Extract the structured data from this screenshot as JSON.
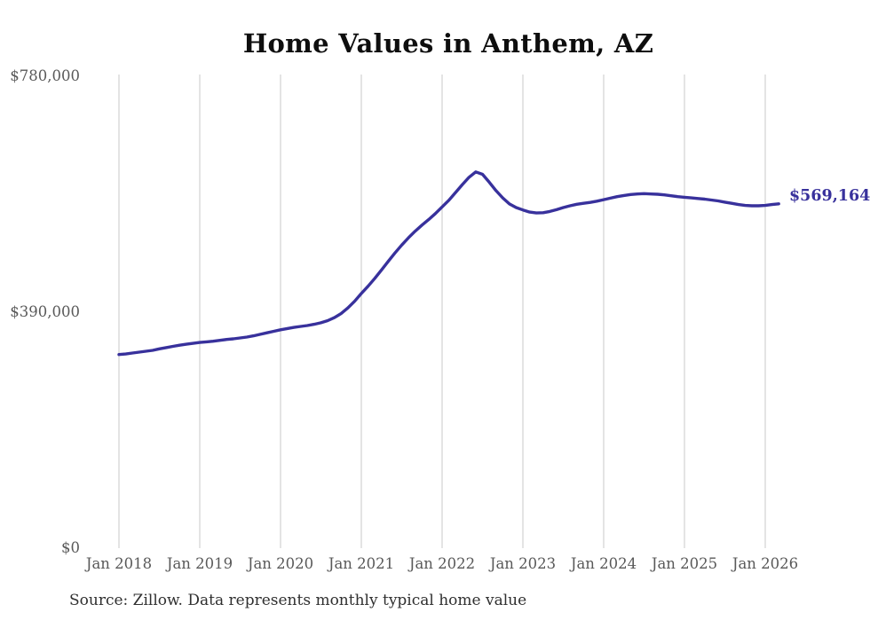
{
  "title": "Home Values in Anthem, AZ",
  "current_value_label": "$569,164",
  "source_note": "Source: Zillow. Data represents monthly typical home value",
  "colors": {
    "background": "#ffffff",
    "line": "#38319c",
    "end_label": "#38319c",
    "grid": "#c9c9c9",
    "axis_text": "#595959",
    "title_text": "#0e0e0e",
    "source_text": "#2f2f2f"
  },
  "y_axis": {
    "ticks": [
      {
        "label": "$780,000",
        "value": 780000
      },
      {
        "label": "$390,000",
        "value": 390000
      },
      {
        "label": "$0",
        "value": 0
      }
    ],
    "min": 0,
    "max": 780000
  },
  "x_axis": {
    "ticks": [
      "Jan 2018",
      "Jan 2019",
      "Jan 2020",
      "Jan 2021",
      "Jan 2022",
      "Jan 2023",
      "Jan 2024",
      "Jan 2025",
      "Jan 2026"
    ]
  },
  "chart_data": {
    "type": "line",
    "title": "Home Values in Anthem, AZ",
    "xlabel": "",
    "ylabel": "",
    "ylim": [
      0,
      780000
    ],
    "grid": "vertical-only",
    "legend": "none",
    "x_tick_labels": [
      "Jan 2018",
      "Jan 2019",
      "Jan 2020",
      "Jan 2021",
      "Jan 2022",
      "Jan 2023",
      "Jan 2024",
      "Jan 2025",
      "Jan 2026"
    ],
    "y_tick_labels": [
      "$780,000",
      "$390,000",
      "$0"
    ],
    "last_point_label": "$569,164",
    "last_point_value": 569164,
    "source": "Zillow",
    "series": [
      {
        "name": "Monthly typical home value",
        "months": [
          "Jan 2018",
          "Feb 2018",
          "Mar 2018",
          "Apr 2018",
          "May 2018",
          "Jun 2018",
          "Jul 2018",
          "Aug 2018",
          "Sep 2018",
          "Oct 2018",
          "Nov 2018",
          "Dec 2018",
          "Jan 2019",
          "Feb 2019",
          "Mar 2019",
          "Apr 2019",
          "May 2019",
          "Jun 2019",
          "Jul 2019",
          "Aug 2019",
          "Sep 2019",
          "Oct 2019",
          "Nov 2019",
          "Dec 2019",
          "Jan 2020",
          "Feb 2020",
          "Mar 2020",
          "Apr 2020",
          "May 2020",
          "Jun 2020",
          "Jul 2020",
          "Aug 2020",
          "Sep 2020",
          "Oct 2020",
          "Nov 2020",
          "Dec 2020",
          "Jan 2021",
          "Feb 2021",
          "Mar 2021",
          "Apr 2021",
          "May 2021",
          "Jun 2021",
          "Jul 2021",
          "Aug 2021",
          "Sep 2021",
          "Oct 2021",
          "Nov 2021",
          "Dec 2021",
          "Jan 2022",
          "Feb 2022",
          "Mar 2022",
          "Apr 2022",
          "May 2022",
          "Jun 2022",
          "Jul 2022",
          "Aug 2022",
          "Sep 2022",
          "Oct 2022",
          "Nov 2022",
          "Dec 2022",
          "Jan 2023",
          "Feb 2023",
          "Mar 2023",
          "Apr 2023",
          "May 2023",
          "Jun 2023",
          "Jul 2023",
          "Aug 2023",
          "Sep 2023",
          "Oct 2023",
          "Nov 2023",
          "Dec 2023",
          "Jan 2024",
          "Feb 2024",
          "Mar 2024",
          "Apr 2024",
          "May 2024",
          "Jun 2024",
          "Jul 2024",
          "Aug 2024",
          "Sep 2024",
          "Oct 2024",
          "Nov 2024",
          "Dec 2024",
          "Jan 2025",
          "Feb 2025",
          "Mar 2025",
          "Apr 2025",
          "May 2025",
          "Jun 2025",
          "Jul 2025",
          "Aug 2025",
          "Sep 2025",
          "Oct 2025",
          "Nov 2025",
          "Dec 2025",
          "Jan 2026",
          "Feb 2026",
          "Mar 2026"
        ],
        "values": [
          320000,
          321000,
          322500,
          324000,
          325500,
          327000,
          329500,
          331500,
          333500,
          335500,
          337000,
          338500,
          340000,
          341000,
          342000,
          343500,
          345000,
          346000,
          347500,
          349000,
          351000,
          353500,
          356000,
          358500,
          361000,
          363000,
          365000,
          366500,
          368000,
          370000,
          372500,
          376000,
          381000,
          388000,
          397000,
          408000,
          421000,
          433000,
          446000,
          460000,
          474000,
          488000,
          501000,
          513000,
          524000,
          534000,
          543000,
          553000,
          564000,
          575000,
          588000,
          601000,
          613000,
          622000,
          618000,
          605000,
          591000,
          579000,
          569000,
          563000,
          559000,
          555500,
          554000,
          554500,
          556500,
          559500,
          563000,
          566000,
          568500,
          570000,
          571500,
          573500,
          576000,
          578500,
          581000,
          583000,
          584500,
          585500,
          586000,
          585500,
          585000,
          584000,
          582500,
          581000,
          580000,
          579000,
          578000,
          577000,
          575500,
          574000,
          572000,
          570000,
          568000,
          566500,
          566000,
          566000,
          566500,
          568000,
          569164
        ]
      }
    ]
  }
}
